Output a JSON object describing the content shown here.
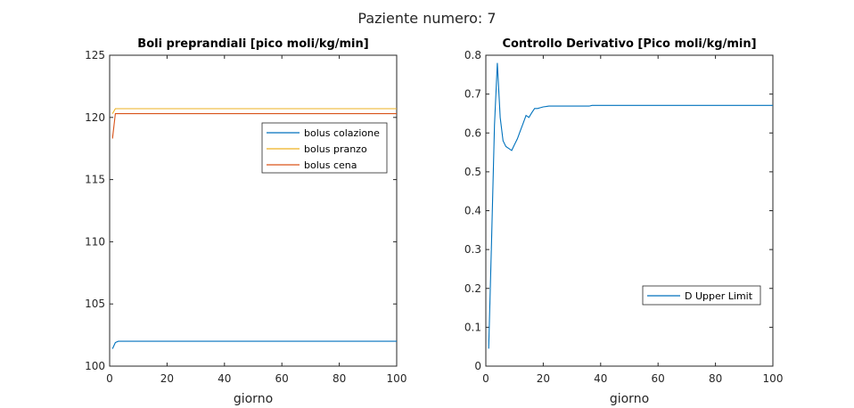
{
  "figure": {
    "title": "Paziente numero: 7"
  },
  "chart_data": [
    {
      "type": "line",
      "title": "Boli preprandiali [pico moli/kg/min]",
      "xlabel": "giorno",
      "ylabel": "",
      "xlim": [
        0,
        100
      ],
      "ylim": [
        100,
        125
      ],
      "xticks": [
        0,
        20,
        40,
        60,
        80,
        100
      ],
      "yticks": [
        100,
        105,
        110,
        115,
        120,
        125
      ],
      "legend_position": "top-right",
      "series": [
        {
          "name": "bolus colazione",
          "color": "#0072BD",
          "x": [
            1,
            2,
            3,
            100
          ],
          "y": [
            101.4,
            101.9,
            102.0,
            102.0
          ]
        },
        {
          "name": "bolus pranzo",
          "color": "#EDB120",
          "x": [
            1,
            2,
            3,
            100
          ],
          "y": [
            120.3,
            120.7,
            120.7,
            120.7
          ]
        },
        {
          "name": "bolus cena",
          "color": "#D95319",
          "x": [
            1,
            2,
            3,
            100
          ],
          "y": [
            118.3,
            120.3,
            120.3,
            120.3
          ]
        }
      ]
    },
    {
      "type": "line",
      "title": "Controllo Derivativo [Pico moli/kg/min]",
      "xlabel": "giorno",
      "ylabel": "",
      "xlim": [
        0,
        100
      ],
      "ylim": [
        0,
        0.8
      ],
      "xticks": [
        0,
        20,
        40,
        60,
        80,
        100
      ],
      "yticks": [
        0,
        0.1,
        0.2,
        0.3,
        0.4,
        0.5,
        0.6,
        0.7,
        0.8
      ],
      "legend_position": "bottom-right",
      "series": [
        {
          "name": "D Upper Limit",
          "color": "#0072BD",
          "x": [
            1,
            2,
            3,
            4,
            5,
            6,
            7,
            8,
            9,
            10,
            11,
            12,
            13,
            14,
            15,
            16,
            17,
            18,
            19,
            20,
            21,
            22,
            25,
            30,
            36,
            37,
            40,
            50,
            60,
            70,
            80,
            90,
            100
          ],
          "y": [
            0.045,
            0.32,
            0.62,
            0.78,
            0.64,
            0.58,
            0.565,
            0.56,
            0.555,
            0.57,
            0.585,
            0.605,
            0.625,
            0.645,
            0.64,
            0.652,
            0.663,
            0.663,
            0.665,
            0.667,
            0.668,
            0.669,
            0.669,
            0.669,
            0.669,
            0.671,
            0.671,
            0.671,
            0.671,
            0.671,
            0.671,
            0.671,
            0.671
          ]
        }
      ]
    }
  ]
}
